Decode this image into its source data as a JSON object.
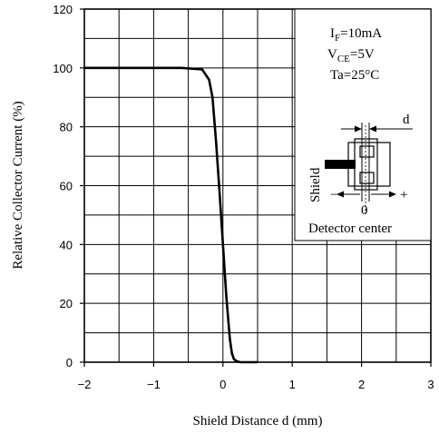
{
  "chart_data": {
    "type": "line",
    "xlabel": "Shield Distance d (mm)",
    "ylabel": "Relative Collector Current (%)",
    "xlim": [
      -2,
      3
    ],
    "ylim": [
      0,
      120
    ],
    "x_ticks": [
      "−2",
      "−1",
      "0",
      "1",
      "2",
      "3"
    ],
    "y_ticks": [
      "0",
      "20",
      "40",
      "60",
      "80",
      "100",
      "120"
    ],
    "grid": true,
    "series": [
      {
        "x": [
          -2.0,
          -0.6,
          -0.3,
          -0.2,
          -0.15,
          -0.1,
          -0.05,
          0.0,
          0.05,
          0.1,
          0.13,
          0.16,
          0.2,
          0.25,
          0.3,
          0.5
        ],
        "y": [
          100,
          100,
          99.5,
          96,
          90,
          75,
          58,
          40,
          22,
          8,
          3,
          1,
          0.3,
          0,
          0,
          0
        ]
      }
    ],
    "conditions": {
      "if_main": "I",
      "if_sub": "F",
      "if_value": "=10mA",
      "vce_main": "V",
      "vce_sub": "CE",
      "vce_value": "=5V",
      "ta": "Ta=25°C"
    },
    "inset": {
      "d_label": "d",
      "shield_label": "Shield",
      "minus_label": "−",
      "plus_label": "+",
      "zero_label": "0",
      "detector_label": "Detector center"
    }
  }
}
